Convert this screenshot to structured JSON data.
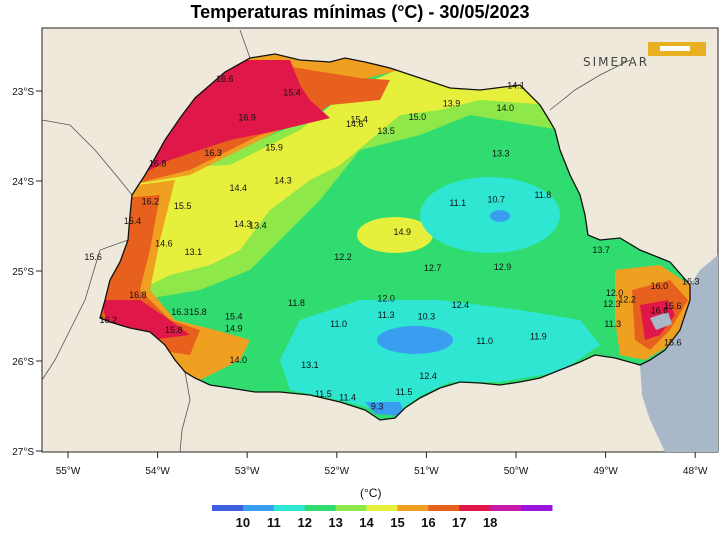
{
  "title": "Temperaturas mínimas (°C) - 30/05/2023",
  "logo_text": "SIMEPAR",
  "legend": {
    "unit": "(°C)",
    "colors": [
      "#3f5fe0",
      "#3a9ef0",
      "#2ee6d2",
      "#30dc70",
      "#8ee84a",
      "#e6f03c",
      "#f0a020",
      "#e8601e",
      "#e0184a",
      "#c818a8",
      "#9a14e0"
    ],
    "labels": [
      "10",
      "11",
      "12",
      "13",
      "14",
      "15",
      "16",
      "17",
      "18"
    ]
  },
  "x_ticks": [
    "55°W",
    "54°W",
    "53°W",
    "52°W",
    "51°W",
    "50°W",
    "49°W",
    "48°W"
  ],
  "y_ticks": [
    "23°S",
    "24°S",
    "25°S",
    "26°S",
    "27°S"
  ],
  "stations": [
    {
      "v": "16.6",
      "lon": -53.25,
      "lat": -22.9
    },
    {
      "v": "15.4",
      "lon": -52.5,
      "lat": -23.05
    },
    {
      "v": "16.9",
      "lon": -53.0,
      "lat": -23.33
    },
    {
      "v": "15.4",
      "lon": -51.75,
      "lat": -23.35
    },
    {
      "v": "14.6",
      "lon": -51.8,
      "lat": -23.4
    },
    {
      "v": "13.5",
      "lon": -51.45,
      "lat": -23.48
    },
    {
      "v": "15.0",
      "lon": -51.1,
      "lat": -23.32
    },
    {
      "v": "13.9",
      "lon": -50.72,
      "lat": -23.17
    },
    {
      "v": "14.0",
      "lon": -50.12,
      "lat": -23.22
    },
    {
      "v": "14.1",
      "lon": -50.0,
      "lat": -22.97
    },
    {
      "v": "16.3",
      "lon": -53.38,
      "lat": -23.72
    },
    {
      "v": "15.9",
      "lon": -52.7,
      "lat": -23.66
    },
    {
      "v": "16.8",
      "lon": -54.0,
      "lat": -23.84
    },
    {
      "v": "13.3",
      "lon": -50.17,
      "lat": -23.73
    },
    {
      "v": "14.3",
      "lon": -52.6,
      "lat": -24.03
    },
    {
      "v": "14.4",
      "lon": -53.1,
      "lat": -24.11
    },
    {
      "v": "16.2",
      "lon": -54.08,
      "lat": -24.26
    },
    {
      "v": "15.5",
      "lon": -53.72,
      "lat": -24.31
    },
    {
      "v": "11.1",
      "lon": -50.65,
      "lat": -24.28
    },
    {
      "v": "10.7",
      "lon": -50.22,
      "lat": -24.24
    },
    {
      "v": "11.8",
      "lon": -49.7,
      "lat": -24.19
    },
    {
      "v": "15.4",
      "lon": -54.28,
      "lat": -24.48
    },
    {
      "v": "14.3",
      "lon": -53.05,
      "lat": -24.51
    },
    {
      "v": "13.4",
      "lon": -52.88,
      "lat": -24.53
    },
    {
      "v": "14.9",
      "lon": -51.27,
      "lat": -24.6
    },
    {
      "v": "14.6",
      "lon": -53.93,
      "lat": -24.73
    },
    {
      "v": "13.1",
      "lon": -53.6,
      "lat": -24.82
    },
    {
      "v": "15.6",
      "lon": -54.72,
      "lat": -24.88
    },
    {
      "v": "12.2",
      "lon": -51.93,
      "lat": -24.88
    },
    {
      "v": "12.7",
      "lon": -50.93,
      "lat": -25.0
    },
    {
      "v": "12.9",
      "lon": -50.15,
      "lat": -24.99
    },
    {
      "v": "13.7",
      "lon": -49.05,
      "lat": -24.8
    },
    {
      "v": "16.8",
      "lon": -54.22,
      "lat": -25.3
    },
    {
      "v": "12.0",
      "lon": -51.45,
      "lat": -25.34
    },
    {
      "v": "11.8",
      "lon": -52.45,
      "lat": -25.39
    },
    {
      "v": "12.4",
      "lon": -50.62,
      "lat": -25.41
    },
    {
      "v": "12.0",
      "lon": -48.9,
      "lat": -25.28
    },
    {
      "v": "12.2",
      "lon": -48.76,
      "lat": -25.35
    },
    {
      "v": "12.3",
      "lon": -48.93,
      "lat": -25.4
    },
    {
      "v": "16.0",
      "lon": -48.4,
      "lat": -25.2
    },
    {
      "v": "16.3",
      "lon": -48.05,
      "lat": -25.15
    },
    {
      "v": "16.2",
      "lon": -54.55,
      "lat": -25.58
    },
    {
      "v": "16.3",
      "lon": -53.75,
      "lat": -25.49
    },
    {
      "v": "15.8",
      "lon": -53.55,
      "lat": -25.49
    },
    {
      "v": "15.4",
      "lon": -53.15,
      "lat": -25.54
    },
    {
      "v": "15.8",
      "lon": -53.82,
      "lat": -25.69
    },
    {
      "v": "14.9",
      "lon": -53.15,
      "lat": -25.67
    },
    {
      "v": "11.3",
      "lon": -51.45,
      "lat": -25.52
    },
    {
      "v": "10.3",
      "lon": -51.0,
      "lat": -25.54
    },
    {
      "v": "11.0",
      "lon": -51.98,
      "lat": -25.62
    },
    {
      "v": "11.3",
      "lon": -48.92,
      "lat": -25.62
    },
    {
      "v": "16.6",
      "lon": -48.4,
      "lat": -25.47
    },
    {
      "v": "15.6",
      "lon": -48.25,
      "lat": -25.42
    },
    {
      "v": "11.0",
      "lon": -50.35,
      "lat": -25.81
    },
    {
      "v": "11.9",
      "lon": -49.75,
      "lat": -25.76
    },
    {
      "v": "15.6",
      "lon": -48.25,
      "lat": -25.83
    },
    {
      "v": "14.0",
      "lon": -53.1,
      "lat": -26.02
    },
    {
      "v": "13.1",
      "lon": -52.3,
      "lat": -26.08
    },
    {
      "v": "12.4",
      "lon": -50.98,
      "lat": -26.2
    },
    {
      "v": "11.5",
      "lon": -52.15,
      "lat": -26.4
    },
    {
      "v": "11.4",
      "lon": -51.88,
      "lat": -26.44
    },
    {
      "v": "11.5",
      "lon": -51.25,
      "lat": -26.38
    },
    {
      "v": "9.3",
      "lon": -51.55,
      "lat": -26.54
    }
  ]
}
